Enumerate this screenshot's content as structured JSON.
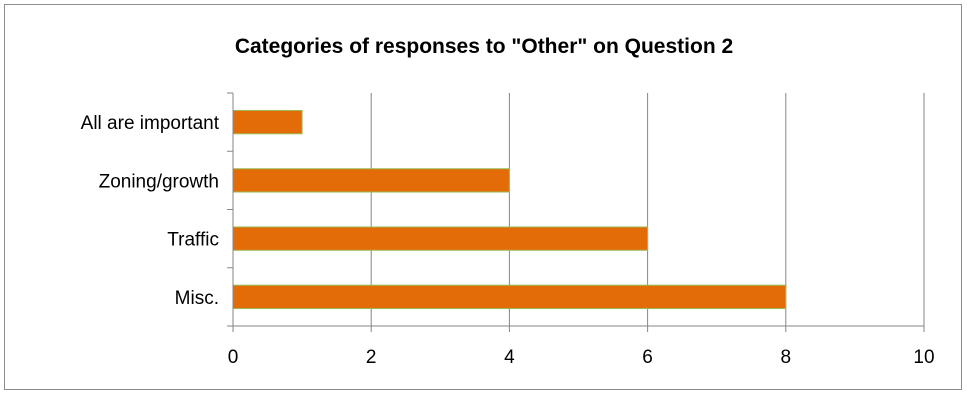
{
  "chart_data": {
    "type": "bar",
    "orientation": "horizontal",
    "title": "Categories of responses to \"Other\" on Question 2",
    "categories": [
      "All are important",
      "Zoning/growth",
      "Traffic",
      "Misc."
    ],
    "values": [
      1,
      4,
      6,
      8
    ],
    "xlim": [
      0,
      10
    ],
    "x_ticks": [
      0,
      2,
      4,
      6,
      8,
      10
    ],
    "grid": "vertical major gridlines",
    "legend": "none",
    "colors": {
      "bar_fill": "#E36C09",
      "bar_edge": "#9BBB59",
      "gridline": "#868686",
      "frame": "#8C8C8C"
    }
  }
}
